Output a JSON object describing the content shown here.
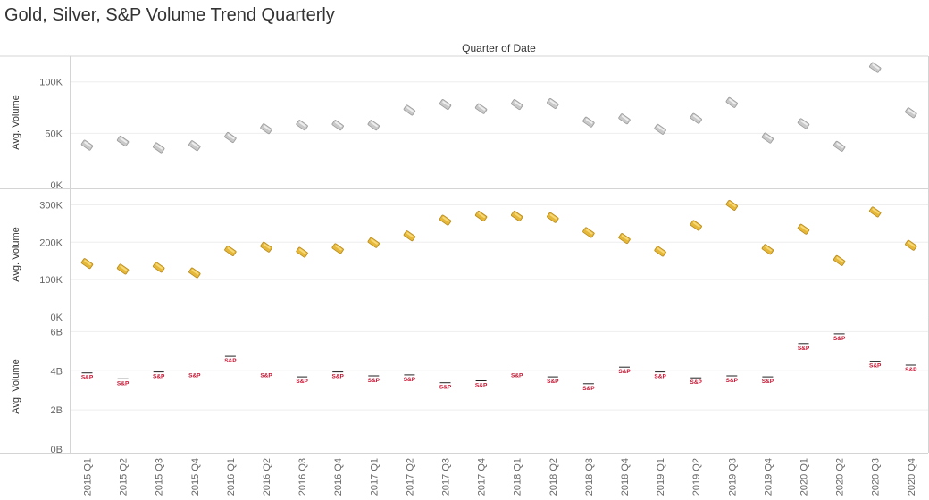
{
  "title": "Gold, Silver, S&P Volume Trend Quarterly",
  "chart_data": {
    "type": "scatter",
    "column_header": "Quarter of Date",
    "categories": [
      "2015 Q1",
      "2015 Q2",
      "2015 Q3",
      "2015 Q4",
      "2016 Q1",
      "2016 Q2",
      "2016 Q3",
      "2016 Q4",
      "2017 Q1",
      "2017 Q2",
      "2017 Q3",
      "2017 Q4",
      "2018 Q1",
      "2018 Q2",
      "2018 Q3",
      "2018 Q4",
      "2019 Q1",
      "2019 Q2",
      "2019 Q3",
      "2019 Q4",
      "2020 Q1",
      "2020 Q2",
      "2020 Q3",
      "2020 Q4"
    ],
    "panels": [
      {
        "ylabel": "Avg. Volume",
        "marker": "silver-bar",
        "color": "#c9c9c9",
        "ylim": [
          0,
          118000
        ],
        "yticks": [
          0,
          50000,
          100000
        ],
        "ytick_labels": [
          "0K",
          "50K",
          "100K"
        ],
        "values": [
          38500,
          42500,
          36000,
          38000,
          46000,
          54500,
          58000,
          58000,
          58000,
          72500,
          78000,
          74000,
          78000,
          79000,
          61000,
          64000,
          54000,
          64500,
          80000,
          45500,
          59500,
          37500,
          114000,
          70000
        ]
      },
      {
        "ylabel": "Avg. Volume",
        "marker": "gold-bar",
        "color": "#e5b83a",
        "ylim": [
          0,
          325000
        ],
        "yticks": [
          0,
          100000,
          200000,
          300000
        ],
        "ytick_labels": [
          "0K",
          "100K",
          "200K",
          "300K"
        ],
        "values": [
          143000,
          128000,
          133000,
          118000,
          177000,
          187000,
          173000,
          183000,
          199000,
          217000,
          259000,
          270000,
          270000,
          266000,
          226000,
          210000,
          176000,
          245000,
          299000,
          181000,
          235000,
          151000,
          281000,
          192000
        ]
      },
      {
        "ylabel": "Avg. Volume",
        "marker": "sp-label",
        "marker_text": "S&P",
        "color": "#c8102e",
        "ylim": [
          0,
          6200000000
        ],
        "yticks": [
          0,
          2000000000,
          4000000000,
          6000000000
        ],
        "ytick_labels": [
          "0B",
          "2B",
          "4B",
          "6B"
        ],
        "values": [
          3750000000,
          3450000000,
          3800000000,
          3850000000,
          4600000000,
          3850000000,
          3550000000,
          3800000000,
          3600000000,
          3650000000,
          3250000000,
          3350000000,
          3850000000,
          3550000000,
          3200000000,
          4050000000,
          3800000000,
          3500000000,
          3600000000,
          3550000000,
          5250000000,
          5750000000,
          4350000000,
          4150000000
        ]
      }
    ],
    "grid": true,
    "legend": "none"
  }
}
